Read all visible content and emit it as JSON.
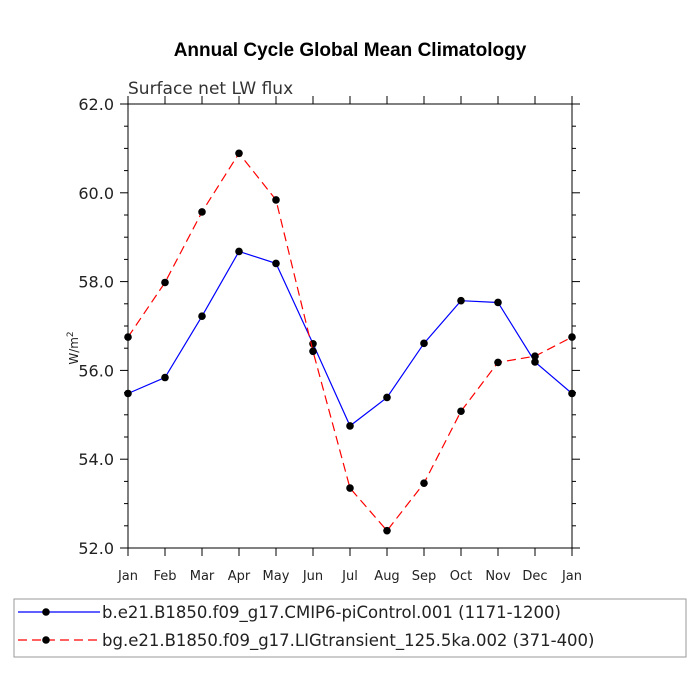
{
  "chart_data": {
    "type": "line",
    "title": "Annual Cycle Global Mean Climatology",
    "subtitle": "Surface net LW flux",
    "ylabel": "W/m",
    "ylabel_sup": "2",
    "xlabel": "",
    "categories": [
      "Jan",
      "Feb",
      "Mar",
      "Apr",
      "May",
      "Jun",
      "Jul",
      "Aug",
      "Sep",
      "Oct",
      "Nov",
      "Dec",
      "Jan"
    ],
    "ylim": [
      52.0,
      62.0
    ],
    "yticks": [
      52.0,
      54.0,
      56.0,
      58.0,
      60.0,
      62.0
    ],
    "ytick_labels": [
      "52.0",
      "54.0",
      "56.0",
      "58.0",
      "60.0",
      "62.0"
    ],
    "series": [
      {
        "name": "b.e21.B1850.f09_g17.CMIP6-piControl.001 (1171-1200)",
        "color": "#0000ff",
        "dash": "solid",
        "values": [
          55.48,
          55.84,
          57.22,
          58.68,
          58.41,
          56.6,
          54.75,
          55.39,
          56.61,
          57.57,
          57.53,
          56.19,
          55.48
        ]
      },
      {
        "name": "bg.e21.B1850.f09_g17.LIGtransient_125.5ka.002 (371-400)",
        "color": "#ff0000",
        "dash": "dashed",
        "values": [
          56.75,
          57.98,
          59.57,
          60.89,
          59.84,
          56.43,
          53.35,
          52.39,
          53.46,
          55.08,
          56.18,
          56.32,
          56.75
        ]
      }
    ]
  }
}
